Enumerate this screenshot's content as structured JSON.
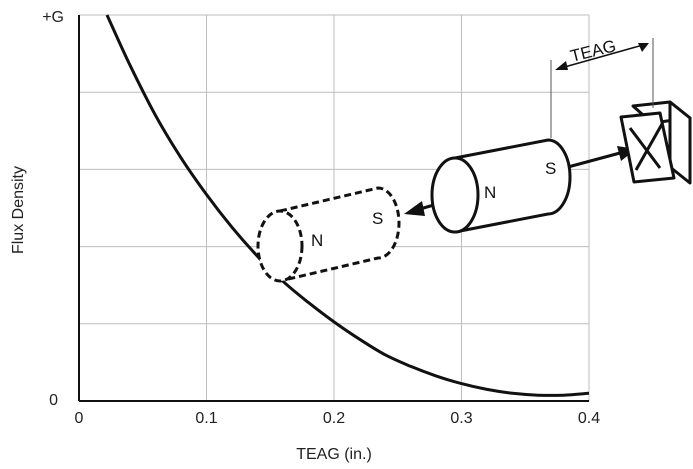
{
  "chart_data": {
    "type": "line",
    "title": "",
    "xlabel": "TEAG (in.)",
    "ylabel": "Flux Density",
    "xlim": [
      0,
      0.4
    ],
    "ylim": [
      0,
      1
    ],
    "x_ticks": [
      "0",
      "0.1",
      "0.2",
      "0.3",
      "0.4"
    ],
    "y_tick_labels": {
      "bottom": "0",
      "top": "+G"
    },
    "grid": true,
    "series": [
      {
        "x": [
          0.022,
          0.04,
          0.06,
          0.08,
          0.1,
          0.12,
          0.14,
          0.16,
          0.18,
          0.2,
          0.22,
          0.24,
          0.26,
          0.28,
          0.3,
          0.32,
          0.34,
          0.36,
          0.38,
          0.4
        ],
        "y": [
          1.0,
          0.87,
          0.74,
          0.63,
          0.535,
          0.45,
          0.375,
          0.31,
          0.255,
          0.205,
          0.16,
          0.12,
          0.09,
          0.065,
          0.045,
          0.03,
          0.02,
          0.015,
          0.015,
          0.02
        ]
      }
    ],
    "colors": {
      "curve": "#111111",
      "grid": "#bdbdbd",
      "axis": "#111111"
    }
  },
  "annotations": {
    "gap_label": "TEAG",
    "magnet_near": {
      "north": "N",
      "south": "S"
    },
    "magnet_far": {
      "north": "N",
      "south": "S"
    },
    "sensor_icon": "cross-in-box"
  }
}
